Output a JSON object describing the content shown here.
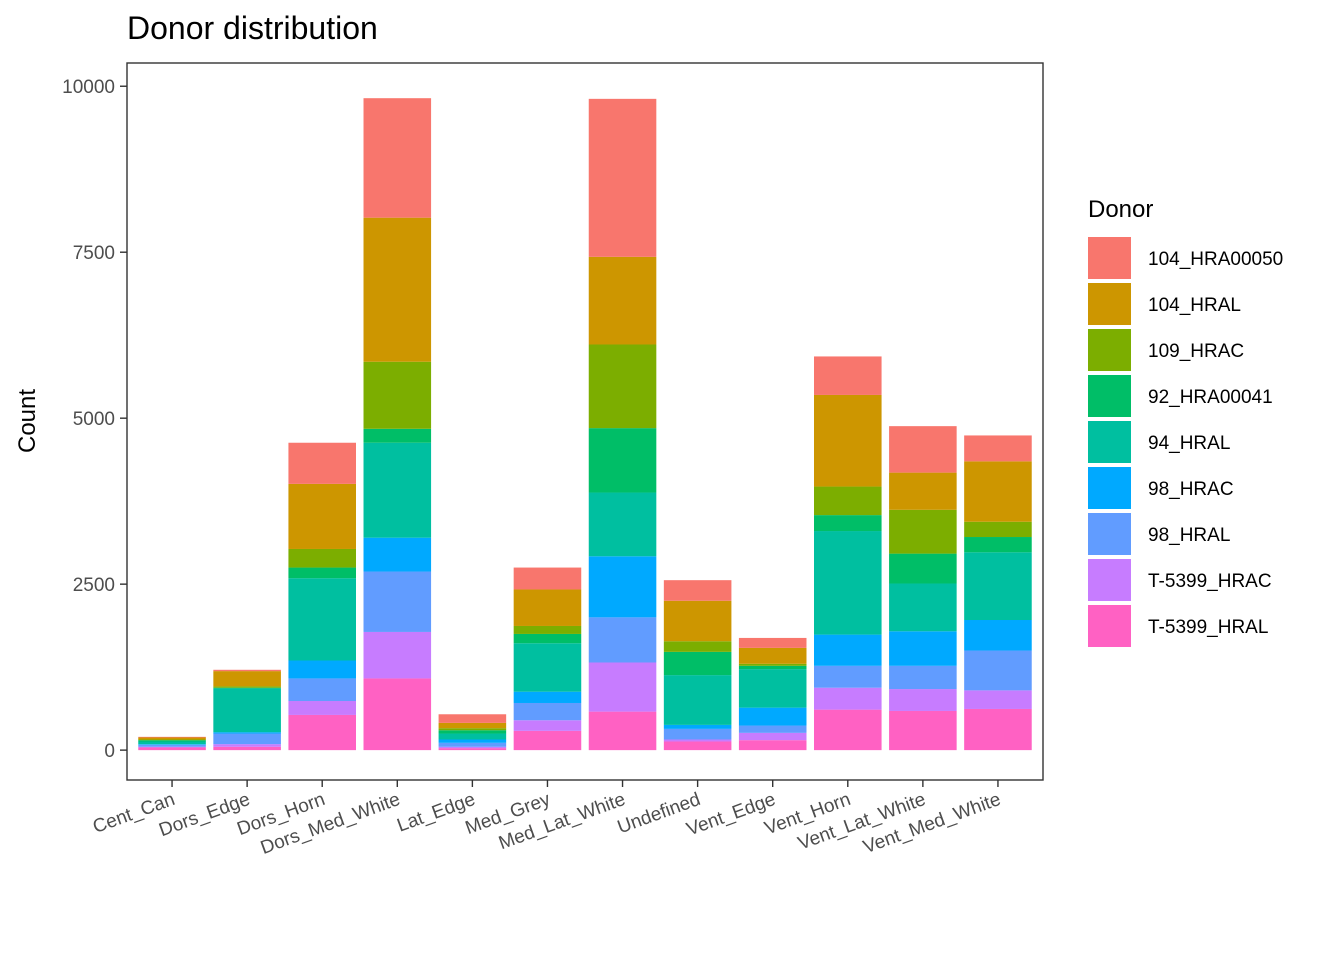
{
  "chart_data": {
    "type": "bar",
    "stacked": true,
    "title": "Donor distribution",
    "xlabel": "",
    "ylabel": "Count",
    "ylim": [
      -450,
      10350
    ],
    "yticks": [
      0,
      2500,
      5000,
      7500,
      10000
    ],
    "ytick_labels": [
      "0",
      "2500",
      "5000",
      "7500",
      "10000"
    ],
    "grid": false,
    "legend": {
      "title": "Donor",
      "position": "right"
    },
    "categories": [
      "Cent_Can",
      "Dors_Edge",
      "Dors_Horn",
      "Dors_Med_White",
      "Lat_Edge",
      "Med_Grey",
      "Med_Lat_White",
      "Undefined",
      "Vent_Edge",
      "Vent_Horn",
      "Vent_Lat_White",
      "Vent_Med_White"
    ],
    "series": [
      {
        "name": "104_HRA00050",
        "color": "#F8766D",
        "values": [
          10,
          20,
          620,
          1800,
          130,
          330,
          2380,
          310,
          150,
          580,
          700,
          390
        ]
      },
      {
        "name": "104_HRAL",
        "color": "#CD9600",
        "values": [
          30,
          230,
          980,
          2170,
          80,
          550,
          1320,
          610,
          240,
          1380,
          560,
          910
        ]
      },
      {
        "name": "109_HRAC",
        "color": "#7CAE00",
        "values": [
          10,
          20,
          280,
          1010,
          30,
          120,
          1260,
          160,
          30,
          430,
          660,
          230
        ]
      },
      {
        "name": "92_HRA00041",
        "color": "#00BE67",
        "values": [
          20,
          10,
          160,
          210,
          50,
          140,
          970,
          350,
          50,
          240,
          450,
          230
        ]
      },
      {
        "name": "94_HRAL",
        "color": "#00BFA0",
        "values": [
          40,
          660,
          1240,
          1430,
          90,
          730,
          960,
          750,
          580,
          1560,
          720,
          1020
        ]
      },
      {
        "name": "98_HRAC",
        "color": "#00A9FF",
        "values": [
          10,
          20,
          270,
          510,
          50,
          170,
          920,
          60,
          270,
          470,
          520,
          460
        ]
      },
      {
        "name": "98_HRAL",
        "color": "#619CFF",
        "values": [
          30,
          160,
          340,
          910,
          60,
          260,
          680,
          160,
          110,
          330,
          350,
          600
        ]
      },
      {
        "name": "T-5399_HRAC",
        "color": "#C77CFF",
        "values": [
          10,
          40,
          210,
          700,
          20,
          160,
          740,
          30,
          110,
          330,
          330,
          280
        ]
      },
      {
        "name": "T-5399_HRAL",
        "color": "#FF61C3",
        "values": [
          40,
          50,
          530,
          1080,
          30,
          290,
          580,
          130,
          150,
          610,
          590,
          620
        ]
      }
    ]
  }
}
